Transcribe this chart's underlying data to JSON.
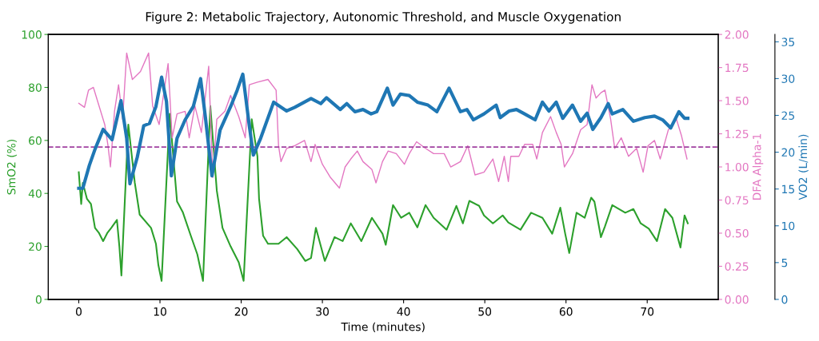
{
  "chart_data": {
    "type": "line",
    "title": "Figure 2: Metabolic Trajectory, Autonomic Threshold, and Muscle Oxygenation",
    "xlabel": "Time (minutes)",
    "ylabel": "SmO2 (%)",
    "y2label": "DFA Alpha-1",
    "y3label": "VO2 (L/min)",
    "xlim": [
      -3.75,
      78.75
    ],
    "xticks": [
      0,
      10,
      20,
      30,
      40,
      50,
      60,
      70
    ],
    "ylim": [
      0,
      100
    ],
    "yticks": [
      0,
      20,
      40,
      60,
      80,
      100
    ],
    "y2lim": [
      0,
      2
    ],
    "y2ticks": [
      {
        "value": 0,
        "label": "0.00"
      },
      {
        "value": 0.25,
        "label": "0.25"
      },
      {
        "value": 0.5,
        "label": "0.50"
      },
      {
        "value": 0.75,
        "label": "0.75"
      },
      {
        "value": 1,
        "label": "1.00"
      },
      {
        "value": 1.25,
        "label": "1.25"
      },
      {
        "value": 1.5,
        "label": "1.50"
      },
      {
        "value": 1.75,
        "label": "1.75"
      },
      {
        "value": 2,
        "label": "2.00"
      }
    ],
    "y3lim": [
      0,
      36
    ],
    "y3ticks": [
      0,
      5,
      10,
      15,
      20,
      25,
      30,
      35
    ],
    "grid": false,
    "legend": false,
    "marker": "none",
    "line_style": "solid",
    "ref_lines": [
      {
        "axis": "y2",
        "value": 1.15,
        "color": "#a040a0",
        "line_style": "dashed"
      }
    ],
    "series": [
      {
        "axis": "y2",
        "color": "#e377c2",
        "x": [
          0,
          0.7,
          1.2,
          1.8,
          2.5,
          3.2,
          3.6,
          3.9,
          4.4,
          4.9,
          5.4,
          5.9,
          6.6,
          7.6,
          8.6,
          9.1,
          9.9,
          11,
          11.5,
          12.1,
          13.1,
          13.6,
          14.3,
          15.1,
          16,
          16.5,
          17,
          18,
          18.7,
          19.7,
          20.5,
          21,
          22,
          23.3,
          24.3,
          24.6,
          24.9,
          25.6,
          26.6,
          27.8,
          28.6,
          29.1,
          30,
          31,
          32.1,
          32.8,
          33.5,
          34.3,
          35,
          36.1,
          36.6,
          37.4,
          38.1,
          39.1,
          40.1,
          40.7,
          41.6,
          42.7,
          43.7,
          45,
          45.8,
          47,
          47.9,
          48.8,
          49.9,
          51,
          51.7,
          52.4,
          52.9,
          53.2,
          54.2,
          54.9,
          55.9,
          56.4,
          57.1,
          58.1,
          58.8,
          59.4,
          59.8,
          60.8,
          61.8,
          62.6,
          63.2,
          63.7,
          64.3,
          64.8,
          65.5,
          66,
          66.8,
          67.7,
          68.7,
          69.5,
          70.1,
          70.9,
          71.6,
          72.6,
          73.6,
          74.2,
          74.9
        ],
        "values": [
          1.48,
          1.45,
          1.58,
          1.6,
          1.46,
          1.32,
          1.16,
          1.0,
          1.42,
          1.62,
          1.36,
          1.86,
          1.66,
          1.72,
          1.86,
          1.46,
          1.32,
          1.78,
          1.22,
          1.4,
          1.42,
          1.22,
          1.46,
          1.26,
          1.76,
          0.92,
          1.36,
          1.42,
          1.54,
          1.38,
          1.22,
          1.62,
          1.64,
          1.66,
          1.58,
          1.16,
          1.04,
          1.14,
          1.16,
          1.2,
          1.04,
          1.17,
          1.02,
          0.92,
          0.84,
          1.0,
          1.06,
          1.12,
          1.04,
          0.98,
          0.88,
          1.04,
          1.12,
          1.1,
          1.02,
          1.1,
          1.19,
          1.14,
          1.1,
          1.1,
          1.0,
          1.04,
          1.16,
          0.94,
          0.96,
          1.06,
          0.89,
          1.08,
          0.89,
          1.08,
          1.08,
          1.17,
          1.17,
          1.06,
          1.26,
          1.38,
          1.26,
          1.17,
          1.0,
          1.1,
          1.28,
          1.32,
          1.62,
          1.52,
          1.56,
          1.58,
          1.36,
          1.14,
          1.22,
          1.08,
          1.14,
          0.96,
          1.16,
          1.2,
          1.06,
          1.28,
          1.36,
          1.24,
          1.06
        ]
      },
      {
        "axis": "y",
        "color": "#2ca02c",
        "x": [
          0,
          0.3,
          0.5,
          1,
          1.5,
          2,
          2.5,
          3,
          3.5,
          4,
          4.7,
          5,
          5.25,
          6.1,
          6.9,
          7.5,
          8.9,
          9.5,
          9.8,
          10.2,
          11.2,
          12.1,
          12.8,
          13.8,
          14.6,
          15.3,
          16.2,
          17,
          17.7,
          18.7,
          19.7,
          20.3,
          21.3,
          22,
          22.2,
          22.7,
          23.3,
          24.6,
          25.6,
          26.9,
          27.9,
          28.6,
          29.2,
          30.3,
          31.5,
          32.5,
          33.5,
          34.8,
          36.1,
          37.4,
          37.8,
          38.7,
          39.7,
          40.7,
          41.7,
          42.7,
          43.7,
          45.3,
          46.5,
          47.3,
          48.1,
          49.3,
          49.9,
          51,
          52.2,
          52.9,
          54.4,
          55.7,
          57.1,
          58.3,
          59.3,
          59.9,
          60.4,
          61.3,
          62.3,
          63.1,
          63.5,
          64.3,
          64.8,
          65.7,
          67.3,
          68.3,
          69.2,
          70.2,
          71.2,
          72.2,
          73.1,
          74.1,
          74.6,
          75
        ],
        "values": [
          48,
          36,
          44,
          38,
          36,
          27,
          25,
          22,
          25,
          27,
          30,
          20,
          9,
          66,
          44,
          32,
          27,
          21,
          13,
          7,
          70,
          37,
          33,
          24,
          17,
          7,
          73,
          41,
          27,
          20,
          14,
          7,
          68,
          54,
          38,
          24,
          21,
          21,
          23.5,
          19,
          14.5,
          15.6,
          27,
          14.5,
          23.5,
          22,
          28.7,
          22,
          30.8,
          24.8,
          20.6,
          35.6,
          30.8,
          32.7,
          27.2,
          35.6,
          30.8,
          26.3,
          35.3,
          28.7,
          37.2,
          35.3,
          31.7,
          28.7,
          31.7,
          29,
          26.3,
          32.7,
          30.8,
          24.8,
          34.6,
          24.8,
          17.5,
          32.7,
          30.8,
          38.4,
          36.9,
          23.5,
          27.6,
          35.6,
          32.7,
          34.1,
          28.7,
          26.7,
          22,
          34.1,
          30.8,
          19.6,
          31.7,
          28.7
        ]
      },
      {
        "axis": "y3",
        "color": "#1f77b4",
        "x": [
          0,
          0.5,
          1.3,
          2,
          3,
          4.1,
          5.2,
          5.9,
          6.3,
          7.2,
          8,
          8.7,
          9.5,
          10.2,
          10.8,
          11.4,
          12.1,
          13.1,
          14.1,
          15,
          15.6,
          16.4,
          17.4,
          18.7,
          19.5,
          20.2,
          21,
          21.5,
          22.4,
          24,
          25.6,
          26.6,
          28.6,
          29.8,
          30.5,
          32.2,
          33,
          34,
          35,
          36,
          36.7,
          38,
          38.7,
          39.6,
          40.7,
          41.7,
          43,
          44.1,
          45.6,
          47,
          47.8,
          48.6,
          49.9,
          51.4,
          51.9,
          53,
          53.9,
          54.9,
          56.2,
          57.1,
          57.9,
          58.8,
          59.6,
          60.8,
          61.8,
          62.6,
          63.3,
          64.3,
          65.2,
          65.7,
          67,
          68.3,
          69.7,
          70.9,
          71.9,
          72.9,
          73.9,
          74.6,
          75
        ],
        "values": [
          15.1,
          15.1,
          18.2,
          20.4,
          23.1,
          21.7,
          27,
          21.9,
          15.7,
          19.3,
          23.6,
          23.9,
          26.2,
          30.2,
          26.9,
          16.8,
          21.9,
          24.4,
          26.2,
          30,
          24.7,
          16.8,
          23,
          26.2,
          28.4,
          30.6,
          23.6,
          19.6,
          21.9,
          26.8,
          25.6,
          26.1,
          27.3,
          26.6,
          27.4,
          25.8,
          26.6,
          25.5,
          25.8,
          25.2,
          25.5,
          28.7,
          26.4,
          27.9,
          27.7,
          26.8,
          26.4,
          25.5,
          28.7,
          25.5,
          25.8,
          24.4,
          25.2,
          26.4,
          24.7,
          25.6,
          25.8,
          25.2,
          24.4,
          26.8,
          25.6,
          26.8,
          24.6,
          26.4,
          24.2,
          25.3,
          23.1,
          24.7,
          26.6,
          25.2,
          25.8,
          24.2,
          24.7,
          24.9,
          24.4,
          23.3,
          25.5,
          24.6,
          24.6
        ]
      }
    ]
  }
}
